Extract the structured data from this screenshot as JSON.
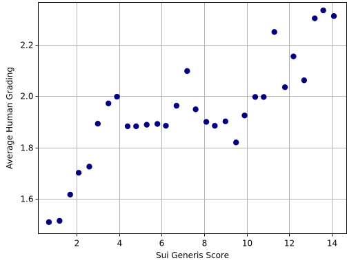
{
  "chart_data": {
    "type": "scatter",
    "title": "",
    "xlabel": "Sui Generis Score",
    "ylabel": "Average Human Grading",
    "xlim": [
      0.2,
      14.7
    ],
    "ylim": [
      1.465,
      2.365
    ],
    "xticks": [
      2,
      4,
      6,
      8,
      10,
      12,
      14
    ],
    "yticks": [
      1.6,
      1.8,
      2.0,
      2.2
    ],
    "xtick_labels": [
      "2",
      "4",
      "6",
      "8",
      "10",
      "12",
      "14"
    ],
    "ytick_labels": [
      "1.6",
      "1.8",
      "2.0",
      "2.2"
    ],
    "grid": true,
    "marker_color": "#00007f",
    "series": [
      {
        "x": [
          0.7,
          1.2,
          1.7,
          2.1,
          2.6,
          3.0,
          3.5,
          3.9,
          4.4,
          4.8,
          5.3,
          5.8,
          6.2,
          6.7,
          7.2,
          7.6,
          8.1,
          8.5,
          9.0,
          9.5,
          9.9,
          10.4,
          10.8,
          11.3,
          11.8,
          12.2,
          12.7,
          13.2,
          13.6,
          14.1
        ],
        "y": [
          1.51,
          1.515,
          1.617,
          1.702,
          1.726,
          1.893,
          1.972,
          1.998,
          1.883,
          1.883,
          1.889,
          1.892,
          1.885,
          1.963,
          2.098,
          1.949,
          1.9,
          1.885,
          1.902,
          1.82,
          1.925,
          1.997,
          1.997,
          2.25,
          2.035,
          2.155,
          2.062,
          2.303,
          2.334,
          2.312
        ]
      }
    ]
  }
}
